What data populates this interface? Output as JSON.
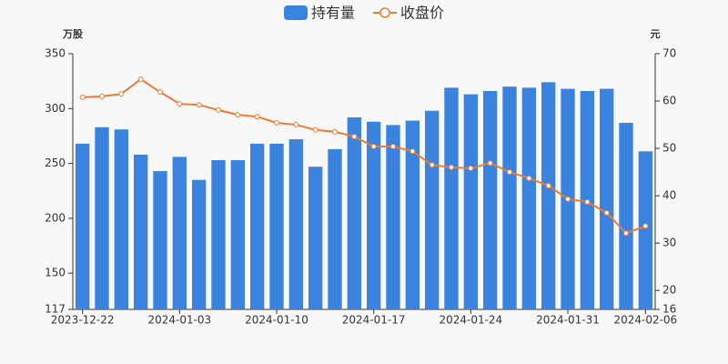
{
  "chart_data": {
    "type": "bar_line",
    "ylabel": "万股",
    "y2label": "元",
    "categories": [
      "2023-12-22",
      null,
      null,
      null,
      null,
      "2024-01-03",
      null,
      null,
      null,
      null,
      "2024-01-10",
      null,
      null,
      null,
      null,
      "2024-01-17",
      null,
      null,
      null,
      null,
      "2024-01-24",
      null,
      null,
      null,
      null,
      "2024-01-31",
      null,
      null,
      null,
      "2024-02-06"
    ],
    "series": [
      {
        "name": "持有量",
        "type": "bar",
        "color": "#3a84e0",
        "values": [
          268,
          283,
          281,
          258,
          243,
          256,
          235,
          253,
          253,
          268,
          268,
          272,
          247,
          263,
          292,
          288,
          285,
          289,
          298,
          319,
          313,
          316,
          320,
          319,
          324,
          318,
          316,
          318,
          287,
          261
        ]
      },
      {
        "name": "收盘价",
        "type": "line",
        "axis": "y2",
        "color": "#f07a33",
        "values": [
          60.8,
          61.0,
          61.5,
          64.6,
          61.9,
          59.4,
          59.2,
          58.1,
          57.1,
          56.7,
          55.4,
          55.0,
          53.9,
          53.5,
          52.5,
          50.4,
          50.4,
          49.4,
          46.5,
          46.0,
          45.8,
          46.9,
          45.0,
          43.7,
          42.1,
          39.3,
          38.7,
          36.4,
          32.1,
          33.6
        ]
      }
    ],
    "ylim": [
      117,
      350
    ],
    "yticks": [
      117,
      150,
      200,
      250,
      300,
      350
    ],
    "y2lim": [
      16,
      70
    ],
    "y2ticks": [
      16,
      20,
      30,
      40,
      50,
      60,
      70
    ]
  }
}
